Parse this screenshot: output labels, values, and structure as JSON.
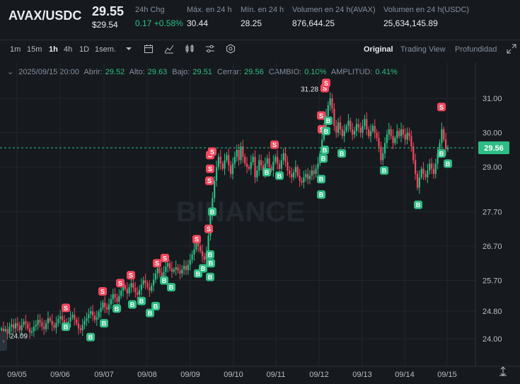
{
  "header": {
    "pair": "AVAX/USDC",
    "price": "29.55",
    "price_usd": "$29.54",
    "stats": [
      {
        "label": "24h Chg",
        "value": "0.17 +0.58%",
        "green": true
      },
      {
        "label": "Máx. en 24 h",
        "value": "30.44",
        "green": false
      },
      {
        "label": "Mín. en 24 h",
        "value": "28.25",
        "green": false
      },
      {
        "label": "Volumen en 24 h(AVAX)",
        "value": "876,644.25",
        "green": false
      },
      {
        "label": "Volumen en 24 h(USDC)",
        "value": "25,634,145.89",
        "green": false
      }
    ]
  },
  "toolbar": {
    "intervals": [
      "1m",
      "15m",
      "1h",
      "4h",
      "1D",
      "1sem."
    ],
    "active_interval": "1h",
    "icons": [
      "caret-down-icon",
      "calendar-icon",
      "indicator-icon",
      "candle-type-icon",
      "settings-icon",
      "hexagon-icon"
    ],
    "views": [
      "Original",
      "Trading View",
      "Profundidad"
    ],
    "active_view": "Original",
    "expand_icon": "expand-icon"
  },
  "ohlc": {
    "date": "2025/09/15 20:00",
    "open_label": "Abrir:",
    "open": "29.52",
    "high_label": "Alto:",
    "high": "29.63",
    "low_label": "Bajo:",
    "low": "29.51",
    "close_label": "Cerrar:",
    "close": "29.56",
    "change_label": "CAMBIO:",
    "change": "0.10%",
    "amp_label": "AMPLITUD:",
    "amp": "0.41%"
  },
  "colors": {
    "up": "#2ebd85",
    "down": "#f6465d",
    "bg": "#161a1e",
    "grid": "#22272e",
    "axis_text": "#b7bdc6"
  },
  "chart_data": {
    "type": "candlestick",
    "x_ticks": [
      "09/05",
      "09/06",
      "09/07",
      "09/08",
      "09/09",
      "09/10",
      "09/11",
      "09/12",
      "09/13",
      "09/14",
      "09/15"
    ],
    "y_ticks": [
      "31.00",
      "30.00",
      "29.00",
      "27.70",
      "26.70",
      "25.70",
      "24.80",
      "24.00"
    ],
    "current_price": "29.56",
    "high_label": "31.28",
    "low_label": "24.09",
    "watermark": "BINANCE",
    "closes": [
      24.3,
      24.22,
      24.28,
      24.15,
      24.35,
      24.42,
      24.3,
      24.45,
      24.38,
      24.25,
      24.4,
      24.5,
      24.44,
      24.3,
      24.18,
      24.22,
      24.35,
      24.4,
      24.55,
      24.48,
      24.36,
      24.28,
      24.45,
      24.6,
      24.52,
      24.4,
      24.32,
      24.46,
      24.58,
      24.66,
      24.54,
      24.42,
      24.38,
      24.5,
      24.62,
      24.7,
      24.56,
      24.44,
      24.3,
      24.25,
      24.4,
      24.52,
      24.6,
      24.72,
      24.8,
      24.68,
      24.55,
      24.62,
      24.78,
      24.9,
      25.05,
      24.92,
      24.85,
      25.0,
      25.15,
      25.3,
      25.2,
      25.08,
      25.25,
      25.4,
      25.55,
      25.45,
      25.32,
      25.5,
      25.62,
      25.48,
      25.35,
      25.28,
      25.42,
      25.58,
      25.7,
      25.62,
      25.5,
      25.4,
      25.55,
      25.72,
      25.9,
      26.05,
      25.92,
      25.8,
      25.95,
      26.1,
      26.2,
      26.05,
      25.95,
      26.02,
      26.08,
      25.98,
      25.9,
      26.02,
      26.12,
      26.0,
      26.15,
      26.3,
      26.45,
      26.6,
      26.8,
      26.7,
      26.55,
      26.4,
      26.3,
      26.5,
      27.0,
      27.6,
      28.1,
      28.6,
      29.0,
      29.3,
      29.1,
      28.95,
      29.2,
      29.35,
      29.05,
      28.8,
      29.1,
      29.3,
      29.5,
      29.2,
      29.6,
      29.3,
      29.1,
      29.0,
      28.95,
      29.15,
      29.3,
      28.7,
      28.9,
      29.2,
      29.05,
      28.85,
      29.1,
      29.25,
      29.0,
      28.9,
      29.15,
      29.3,
      29.1,
      28.95,
      29.2,
      29.4,
      29.15,
      28.9,
      28.8,
      28.7,
      28.85,
      29.0,
      28.75,
      28.6,
      28.55,
      28.7,
      28.8,
      28.65,
      28.75,
      28.9,
      28.8,
      28.95,
      29.1,
      29.4,
      29.8,
      30.2,
      30.5,
      30.8,
      31.0,
      30.7,
      30.2,
      30.0,
      30.3,
      30.1,
      29.9,
      30.05,
      30.2,
      30.35,
      30.1,
      29.95,
      30.05,
      30.25,
      30.15,
      30.0,
      30.2,
      30.4,
      30.1,
      29.9,
      30.05,
      30.2,
      30.0,
      29.85,
      29.6,
      29.2,
      29.4,
      29.7,
      29.95,
      30.1,
      29.9,
      29.7,
      29.85,
      30.05,
      29.9,
      30.1,
      29.95,
      29.8,
      30.0,
      29.9,
      29.6,
      29.2,
      28.8,
      28.4,
      28.7,
      28.95,
      28.8,
      28.7,
      28.9,
      29.1,
      28.95,
      28.8,
      29.1,
      29.4,
      29.7,
      30.1,
      29.8,
      29.52,
      29.56
    ]
  }
}
